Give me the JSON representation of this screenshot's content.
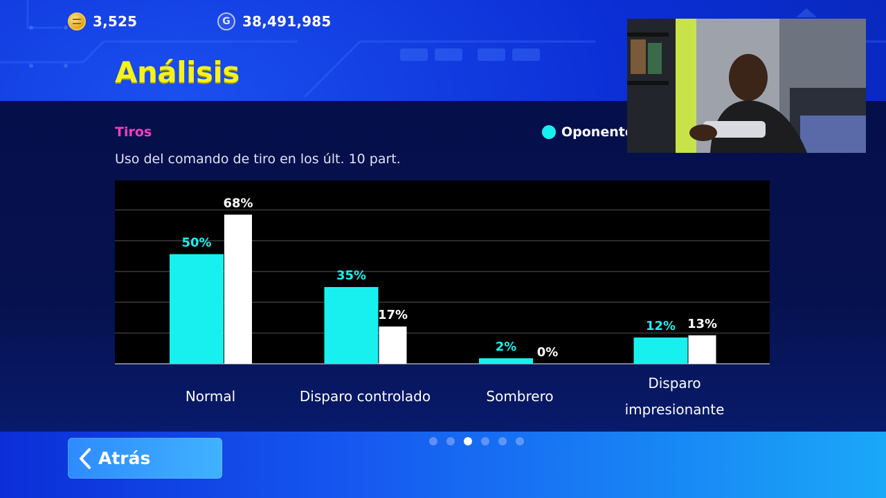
{
  "header": {
    "coins": {
      "icon": "gold-coin-icon",
      "value": "3,525"
    },
    "gp": {
      "icon": "gp-coin-icon",
      "glyph": "G",
      "value": "38,491,985"
    },
    "title": "Análisis"
  },
  "analysis": {
    "section_label": "Tiros",
    "subtitle": "Uso del comando de tiro en los últ. 10 part.",
    "legend": {
      "label": "Oponente",
      "color": "#18f0f0"
    }
  },
  "chart_data": {
    "type": "bar",
    "categories": [
      [
        "Normal"
      ],
      [
        "Disparo controlado"
      ],
      [
        "Sombrero"
      ],
      [
        "Disparo",
        "impresionante"
      ]
    ],
    "series": [
      {
        "name": "Oponente",
        "color": "#18f0f0",
        "values": [
          50,
          35,
          2,
          12
        ],
        "labels": [
          "50%",
          "35%",
          "2%",
          "12%"
        ]
      },
      {
        "color": "#ffffff",
        "values": [
          68,
          17,
          0,
          13
        ],
        "labels": [
          "68%",
          "17%",
          "0%",
          "13%"
        ]
      }
    ],
    "ylim": [
      0,
      70
    ],
    "grid": true,
    "legend_position": "top-right"
  },
  "pagination": {
    "total": 6,
    "active": 2
  },
  "footer": {
    "back_label": "Atrás"
  },
  "colors": {
    "title": "#f5f21e",
    "section": "#ff3cbf",
    "accent": "#18f0f0"
  }
}
